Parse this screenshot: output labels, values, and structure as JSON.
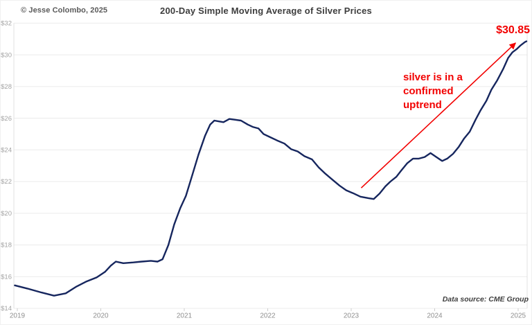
{
  "header": {
    "copyright": "© Jesse Colombo, 2025",
    "title": "200-Day Simple Moving Average of Silver Prices"
  },
  "annotations": {
    "price_label": "$30.85",
    "trend_note_lines": [
      "silver is in a",
      "confirmed",
      "uptrend"
    ],
    "trend_note_full": "silver is in a confirmed uptrend",
    "data_source": "Data source: CME Group",
    "arrow": {
      "from_year": 2023.12,
      "from_value": 21.6,
      "to_year": 2024.97,
      "to_value": 30.75
    }
  },
  "colors": {
    "line_navy": "#16265e",
    "accent_red": "#f20000",
    "grid": "#ebebeb",
    "spine": "#e0e0e0",
    "tick": "#cccccc",
    "y_label": "#a3a3a3",
    "x_label": "#8f8f8f"
  },
  "chart_data": {
    "type": "line",
    "title": "200-Day Simple Moving Average of Silver Prices",
    "grid": "horizontal",
    "legend": "none",
    "x_axis": {
      "range": [
        2018.95,
        2025.15
      ],
      "ticks": [
        2019,
        2020,
        2021,
        2022,
        2023,
        2024,
        2025
      ]
    },
    "y_axis": {
      "range": [
        14,
        32
      ],
      "tick_values": [
        32,
        30,
        28,
        26,
        24,
        22,
        20,
        18,
        16,
        14
      ],
      "tick_labels": [
        "$32",
        "$30",
        "$28",
        "$26",
        "$24",
        "$22",
        "$20",
        "$18",
        "$16",
        "$14"
      ]
    },
    "end_value_label": "$30.85",
    "series": [
      {
        "name": "200-day SMA of silver price",
        "color": "#16265e",
        "points": [
          [
            2018.97,
            15.45
          ],
          [
            2019.12,
            15.25
          ],
          [
            2019.29,
            15.0
          ],
          [
            2019.44,
            14.8
          ],
          [
            2019.58,
            14.95
          ],
          [
            2019.7,
            15.35
          ],
          [
            2019.83,
            15.7
          ],
          [
            2019.95,
            15.95
          ],
          [
            2020.05,
            16.3
          ],
          [
            2020.12,
            16.7
          ],
          [
            2020.18,
            16.95
          ],
          [
            2020.27,
            16.85
          ],
          [
            2020.39,
            16.9
          ],
          [
            2020.49,
            16.95
          ],
          [
            2020.6,
            17.0
          ],
          [
            2020.68,
            16.95
          ],
          [
            2020.74,
            17.1
          ],
          [
            2020.81,
            18.0
          ],
          [
            2020.88,
            19.3
          ],
          [
            2020.95,
            20.3
          ],
          [
            2021.02,
            21.1
          ],
          [
            2021.09,
            22.3
          ],
          [
            2021.17,
            23.7
          ],
          [
            2021.25,
            24.9
          ],
          [
            2021.31,
            25.6
          ],
          [
            2021.36,
            25.85
          ],
          [
            2021.41,
            25.8
          ],
          [
            2021.47,
            25.75
          ],
          [
            2021.54,
            25.95
          ],
          [
            2021.61,
            25.9
          ],
          [
            2021.68,
            25.85
          ],
          [
            2021.76,
            25.6
          ],
          [
            2021.82,
            25.45
          ],
          [
            2021.89,
            25.35
          ],
          [
            2021.95,
            25.0
          ],
          [
            2022.03,
            24.8
          ],
          [
            2022.11,
            24.6
          ],
          [
            2022.2,
            24.4
          ],
          [
            2022.28,
            24.05
          ],
          [
            2022.36,
            23.9
          ],
          [
            2022.44,
            23.6
          ],
          [
            2022.53,
            23.4
          ],
          [
            2022.61,
            22.9
          ],
          [
            2022.69,
            22.5
          ],
          [
            2022.78,
            22.1
          ],
          [
            2022.86,
            21.75
          ],
          [
            2022.94,
            21.45
          ],
          [
            2023.03,
            21.25
          ],
          [
            2023.11,
            21.05
          ],
          [
            2023.21,
            20.95
          ],
          [
            2023.27,
            20.9
          ],
          [
            2023.34,
            21.25
          ],
          [
            2023.41,
            21.7
          ],
          [
            2023.47,
            22.0
          ],
          [
            2023.54,
            22.3
          ],
          [
            2023.6,
            22.7
          ],
          [
            2023.67,
            23.15
          ],
          [
            2023.74,
            23.45
          ],
          [
            2023.81,
            23.45
          ],
          [
            2023.88,
            23.55
          ],
          [
            2023.95,
            23.8
          ],
          [
            2024.02,
            23.55
          ],
          [
            2024.09,
            23.3
          ],
          [
            2024.15,
            23.45
          ],
          [
            2024.22,
            23.75
          ],
          [
            2024.29,
            24.2
          ],
          [
            2024.35,
            24.7
          ],
          [
            2024.42,
            25.15
          ],
          [
            2024.49,
            25.9
          ],
          [
            2024.55,
            26.5
          ],
          [
            2024.62,
            27.1
          ],
          [
            2024.68,
            27.8
          ],
          [
            2024.75,
            28.4
          ],
          [
            2024.82,
            29.1
          ],
          [
            2024.88,
            29.8
          ],
          [
            2024.93,
            30.15
          ],
          [
            2024.98,
            30.35
          ],
          [
            2025.03,
            30.6
          ],
          [
            2025.08,
            30.8
          ],
          [
            2025.1,
            30.85
          ]
        ]
      }
    ]
  }
}
